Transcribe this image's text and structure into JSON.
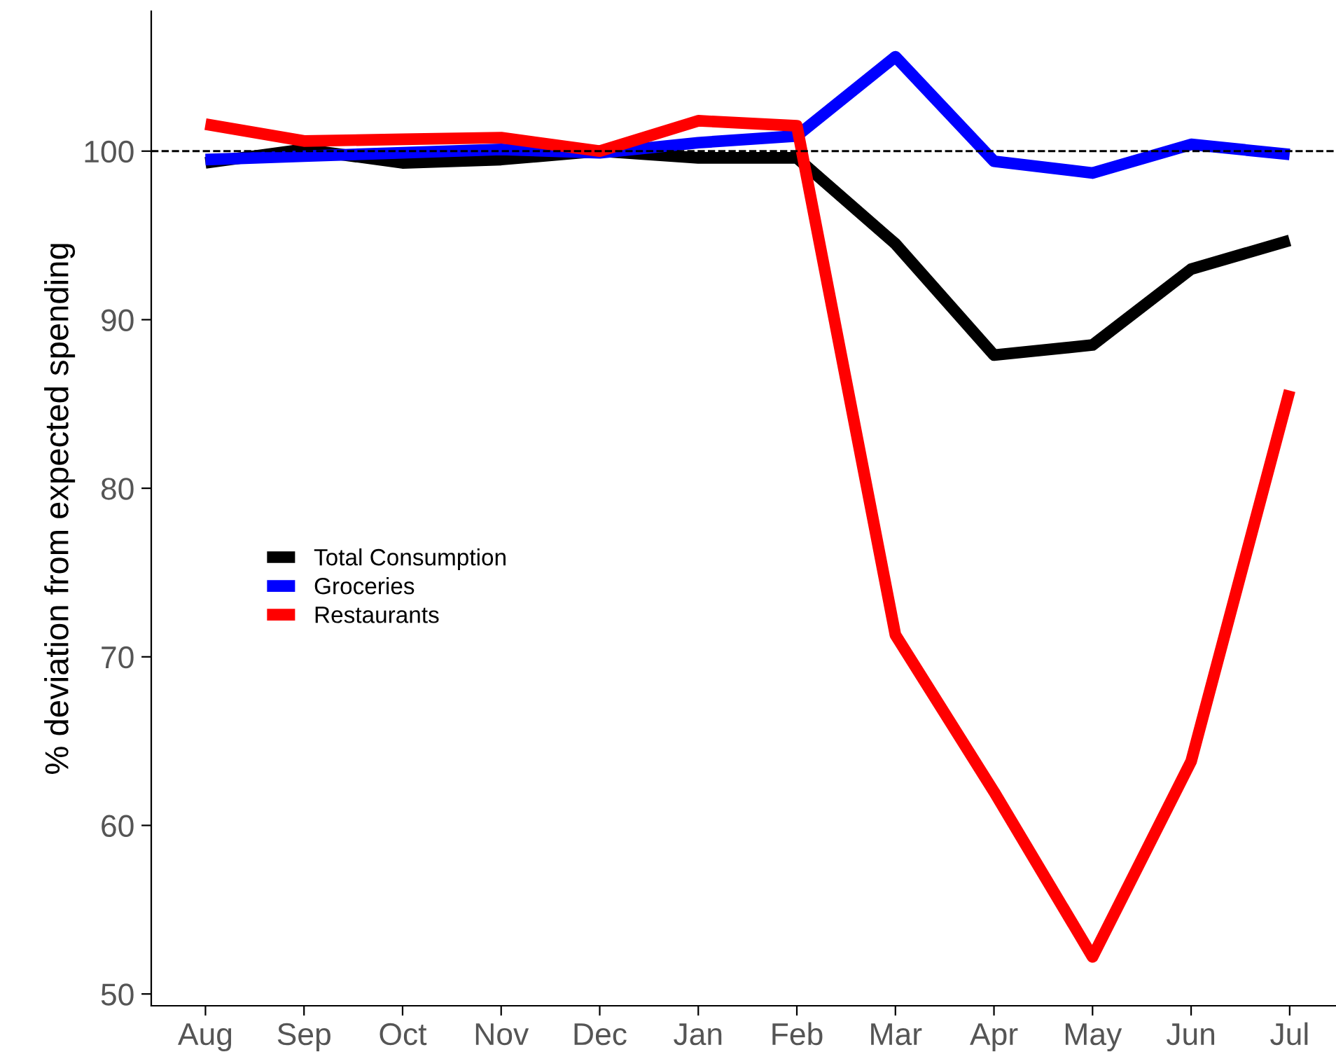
{
  "chart_data": {
    "type": "line",
    "ylabel": "% deviation from expected spending",
    "categories": [
      "Aug",
      "Sep",
      "Oct",
      "Nov",
      "Dec",
      "Jan",
      "Feb",
      "Mar",
      "Apr",
      "May",
      "Jun",
      "Jul"
    ],
    "series": [
      {
        "name": "Total Consumption",
        "color": "#000000",
        "values": [
          99.3,
          100.1,
          99.3,
          99.5,
          100.0,
          99.6,
          99.6,
          94.5,
          87.9,
          88.5,
          93.0,
          94.7
        ]
      },
      {
        "name": "Groceries",
        "color": "#0000ff",
        "values": [
          99.5,
          99.7,
          99.9,
          100.1,
          99.9,
          100.5,
          100.9,
          105.6,
          99.4,
          98.7,
          100.4,
          99.8
        ]
      },
      {
        "name": "Restaurants",
        "color": "#ff0000",
        "values": [
          101.6,
          100.6,
          100.7,
          100.8,
          100.0,
          101.8,
          101.5,
          71.3,
          62.0,
          52.2,
          63.8,
          85.8
        ]
      }
    ],
    "ylim": [
      49.3,
      108.3
    ],
    "yticks": [
      50,
      60,
      70,
      80,
      90,
      100
    ],
    "ref_lines": [
      {
        "axis": "y",
        "value": 100,
        "color": "#000000",
        "line_style": "dashed"
      }
    ],
    "legend": "center left",
    "grid": false,
    "marker": "none",
    "line_style": "solid"
  }
}
